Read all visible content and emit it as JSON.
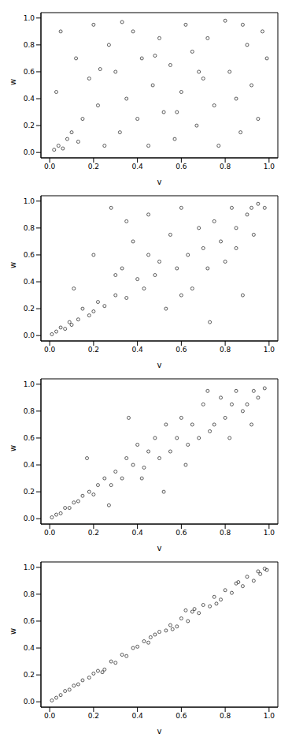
{
  "chart_data": [
    {
      "type": "scatter",
      "x_label": "v",
      "y_label": "w",
      "marker": "circle",
      "color": "#333333",
      "xlim": [
        -0.04,
        1.04
      ],
      "ylim": [
        -0.04,
        1.04
      ],
      "xticks": [
        {
          "value": 0,
          "label": "0.0"
        },
        0.2,
        0.4,
        0.6,
        0.8,
        {
          "value": 1,
          "label": "1.0"
        }
      ],
      "yticks": [
        {
          "value": 0,
          "label": "0.0"
        },
        0.2,
        0.4,
        0.6,
        0.8,
        {
          "value": 1,
          "label": "1.0"
        }
      ],
      "x": [
        0.02,
        0.04,
        0.06,
        0.08,
        0.1,
        0.03,
        0.05,
        0.12,
        0.15,
        0.18,
        0.2,
        0.22,
        0.25,
        0.27,
        0.3,
        0.32,
        0.35,
        0.38,
        0.4,
        0.42,
        0.45,
        0.47,
        0.5,
        0.52,
        0.55,
        0.57,
        0.6,
        0.62,
        0.65,
        0.67,
        0.7,
        0.72,
        0.75,
        0.77,
        0.8,
        0.82,
        0.85,
        0.87,
        0.9,
        0.92,
        0.95,
        0.97,
        0.99,
        0.13,
        0.33,
        0.58,
        0.68,
        0.88,
        0.48,
        0.23
      ],
      "values": [
        0.02,
        0.05,
        0.03,
        0.1,
        0.15,
        0.45,
        0.9,
        0.7,
        0.25,
        0.55,
        0.95,
        0.35,
        0.05,
        0.8,
        0.6,
        0.15,
        0.4,
        0.9,
        0.25,
        0.7,
        0.05,
        0.5,
        0.85,
        0.3,
        0.65,
        0.1,
        0.45,
        0.95,
        0.75,
        0.2,
        0.55,
        0.85,
        0.35,
        0.05,
        0.98,
        0.6,
        0.4,
        0.15,
        0.8,
        0.5,
        0.25,
        0.9,
        0.7,
        0.08,
        0.97,
        0.3,
        0.6,
        0.95,
        0.72,
        0.62
      ]
    },
    {
      "type": "scatter",
      "x_label": "v",
      "y_label": "w",
      "marker": "circle",
      "color": "#333333",
      "xlim": [
        -0.04,
        1.04
      ],
      "ylim": [
        -0.04,
        1.04
      ],
      "xticks": [
        {
          "value": 0,
          "label": "0.0"
        },
        0.2,
        0.4,
        0.6,
        0.8,
        {
          "value": 1,
          "label": "1.0"
        }
      ],
      "yticks": [
        {
          "value": 0,
          "label": "0.0"
        },
        0.2,
        0.4,
        0.6,
        0.8,
        {
          "value": 1,
          "label": "1.0"
        }
      ],
      "x": [
        0.01,
        0.03,
        0.05,
        0.07,
        0.09,
        0.11,
        0.13,
        0.15,
        0.18,
        0.2,
        0.22,
        0.25,
        0.28,
        0.3,
        0.33,
        0.35,
        0.38,
        0.4,
        0.43,
        0.45,
        0.48,
        0.5,
        0.53,
        0.55,
        0.58,
        0.6,
        0.63,
        0.65,
        0.68,
        0.7,
        0.73,
        0.75,
        0.78,
        0.8,
        0.83,
        0.85,
        0.88,
        0.9,
        0.93,
        0.95,
        0.98,
        0.1,
        0.2,
        0.3,
        0.45,
        0.6,
        0.72,
        0.85,
        0.92,
        0.35
      ],
      "values": [
        0.01,
        0.03,
        0.06,
        0.05,
        0.1,
        0.35,
        0.12,
        0.2,
        0.15,
        0.6,
        0.25,
        0.22,
        0.95,
        0.3,
        0.5,
        0.28,
        0.7,
        0.42,
        0.35,
        0.9,
        0.45,
        0.55,
        0.2,
        0.75,
        0.5,
        0.95,
        0.6,
        0.35,
        0.8,
        0.65,
        0.1,
        0.85,
        0.7,
        0.55,
        0.95,
        0.8,
        0.3,
        0.9,
        0.75,
        0.98,
        0.95,
        0.08,
        0.18,
        0.45,
        0.6,
        0.3,
        0.5,
        0.65,
        0.95,
        0.85
      ]
    },
    {
      "type": "scatter",
      "x_label": "v",
      "y_label": "w",
      "marker": "circle",
      "color": "#333333",
      "xlim": [
        -0.04,
        1.04
      ],
      "ylim": [
        -0.04,
        1.04
      ],
      "xticks": [
        {
          "value": 0,
          "label": "0.0"
        },
        0.2,
        0.4,
        0.6,
        0.8,
        {
          "value": 1,
          "label": "1.0"
        }
      ],
      "yticks": [
        {
          "value": 0,
          "label": "0.0"
        },
        0.2,
        0.4,
        0.6,
        0.8,
        {
          "value": 1,
          "label": "1.0"
        }
      ],
      "x": [
        0.01,
        0.03,
        0.05,
        0.07,
        0.09,
        0.11,
        0.13,
        0.15,
        0.18,
        0.2,
        0.22,
        0.25,
        0.28,
        0.3,
        0.33,
        0.35,
        0.38,
        0.4,
        0.43,
        0.45,
        0.48,
        0.5,
        0.53,
        0.55,
        0.58,
        0.6,
        0.63,
        0.65,
        0.68,
        0.7,
        0.73,
        0.75,
        0.78,
        0.8,
        0.83,
        0.85,
        0.88,
        0.9,
        0.93,
        0.95,
        0.98,
        0.17,
        0.27,
        0.42,
        0.52,
        0.62,
        0.72,
        0.82,
        0.92,
        0.36
      ],
      "values": [
        0.01,
        0.03,
        0.04,
        0.08,
        0.08,
        0.12,
        0.13,
        0.17,
        0.2,
        0.18,
        0.25,
        0.3,
        0.25,
        0.35,
        0.3,
        0.45,
        0.4,
        0.55,
        0.38,
        0.5,
        0.6,
        0.45,
        0.7,
        0.5,
        0.6,
        0.75,
        0.55,
        0.7,
        0.6,
        0.85,
        0.65,
        0.7,
        0.9,
        0.75,
        0.85,
        0.95,
        0.8,
        0.85,
        0.95,
        0.9,
        0.97,
        0.45,
        0.1,
        0.3,
        0.2,
        0.4,
        0.95,
        0.6,
        0.7,
        0.75
      ]
    },
    {
      "type": "scatter",
      "x_label": "v",
      "y_label": "w",
      "marker": "circle",
      "color": "#333333",
      "xlim": [
        -0.04,
        1.04
      ],
      "ylim": [
        -0.04,
        1.04
      ],
      "xticks": [
        {
          "value": 0,
          "label": "0.0"
        },
        0.2,
        0.4,
        0.6,
        0.8,
        {
          "value": 1,
          "label": "1.0"
        }
      ],
      "yticks": [
        {
          "value": 0,
          "label": "0.0"
        },
        0.2,
        0.4,
        0.6,
        0.8,
        {
          "value": 1,
          "label": "1.0"
        }
      ],
      "x": [
        0.01,
        0.03,
        0.05,
        0.07,
        0.09,
        0.11,
        0.13,
        0.15,
        0.18,
        0.2,
        0.22,
        0.25,
        0.28,
        0.3,
        0.33,
        0.35,
        0.38,
        0.4,
        0.43,
        0.45,
        0.48,
        0.5,
        0.53,
        0.55,
        0.58,
        0.6,
        0.63,
        0.65,
        0.68,
        0.7,
        0.73,
        0.75,
        0.78,
        0.8,
        0.83,
        0.85,
        0.88,
        0.9,
        0.93,
        0.95,
        0.98,
        0.24,
        0.46,
        0.56,
        0.66,
        0.76,
        0.86,
        0.96,
        0.99,
        0.62
      ],
      "values": [
        0.01,
        0.03,
        0.05,
        0.08,
        0.09,
        0.12,
        0.13,
        0.16,
        0.18,
        0.21,
        0.23,
        0.24,
        0.3,
        0.29,
        0.35,
        0.34,
        0.4,
        0.41,
        0.45,
        0.44,
        0.5,
        0.52,
        0.53,
        0.57,
        0.56,
        0.62,
        0.6,
        0.67,
        0.66,
        0.72,
        0.71,
        0.78,
        0.76,
        0.83,
        0.81,
        0.88,
        0.86,
        0.93,
        0.9,
        0.97,
        0.99,
        0.22,
        0.48,
        0.54,
        0.69,
        0.73,
        0.89,
        0.95,
        0.98,
        0.68
      ]
    }
  ]
}
